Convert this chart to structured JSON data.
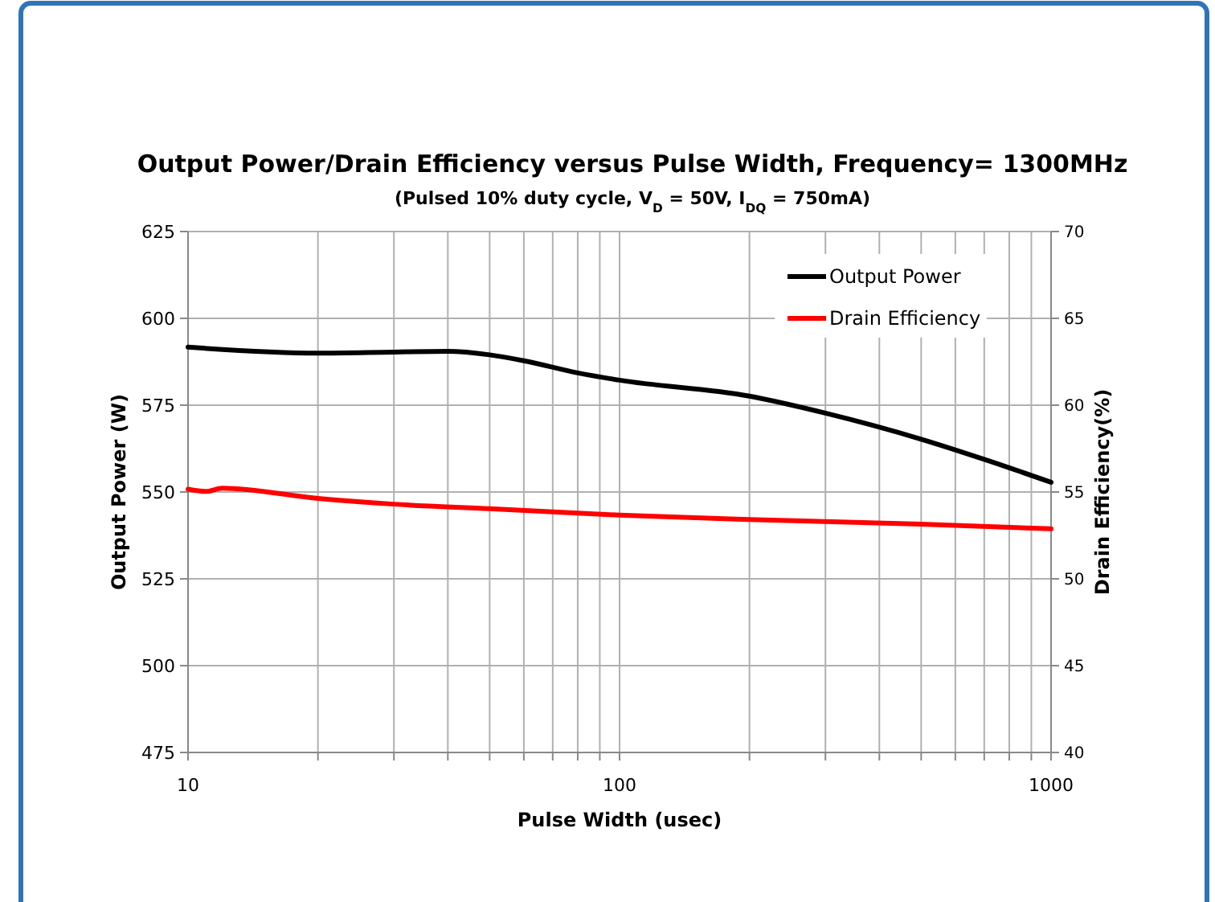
{
  "chart_data": {
    "type": "line",
    "title": "Output Power/Drain Efficiency versus Pulse Width,  Frequency= 1300MHz",
    "subtitle": "(Pulsed 10% duty cycle, V$_{D}$ = 50V, I$_{DQ}$ = 750mA)",
    "xlabel": "Pulse Width (usec)",
    "ylabel": "Output Power (W)",
    "y2label": "Drain Efficiency(%)",
    "log": "x",
    "grid": true,
    "legend": "top right",
    "xlim": [
      10,
      1000
    ],
    "xticks": [
      10,
      {
        "value": 20,
        "label": null
      },
      {
        "value": 30,
        "label": null
      },
      {
        "value": 40,
        "label": null
      },
      {
        "value": 50,
        "label": null
      },
      {
        "value": 60,
        "label": null
      },
      {
        "value": 70,
        "label": null
      },
      {
        "value": 80,
        "label": null
      },
      {
        "value": 90,
        "label": null
      },
      100,
      {
        "value": 200,
        "label": null
      },
      {
        "value": 300,
        "label": null
      },
      {
        "value": 400,
        "label": null
      },
      {
        "value": 500,
        "label": null
      },
      {
        "value": 600,
        "label": null
      },
      {
        "value": 700,
        "label": null
      },
      {
        "value": 800,
        "label": null
      },
      {
        "value": 900,
        "label": null
      },
      1000
    ],
    "ylim": [
      475,
      625
    ],
    "yticks": [
      475,
      500,
      525,
      550,
      575,
      600,
      625
    ],
    "y2lim": [
      40,
      70
    ],
    "y2ticks": [
      40,
      45,
      50,
      55,
      60,
      65,
      70
    ],
    "series": [
      {
        "name": "Output Power",
        "color": "#000000",
        "x": [
          10,
          20,
          30,
          40,
          50,
          60,
          80,
          100,
          200,
          300,
          500,
          700,
          1000
        ],
        "values": [
          591.7,
          590,
          590.3,
          590.5,
          589.5,
          587.8,
          584.3,
          582.2,
          577.6,
          572.7,
          565.2,
          559.4,
          552.8
        ]
      },
      {
        "name": "Drain Efficiency",
        "color": "#ff0000",
        "axis": "y2",
        "x": [
          10,
          11,
          12,
          20,
          30,
          50,
          100,
          200,
          500,
          1000
        ],
        "values": [
          55.16,
          55.03,
          55.22,
          54.63,
          54.3,
          54.04,
          53.67,
          53.41,
          53.15,
          52.88
        ]
      }
    ]
  }
}
